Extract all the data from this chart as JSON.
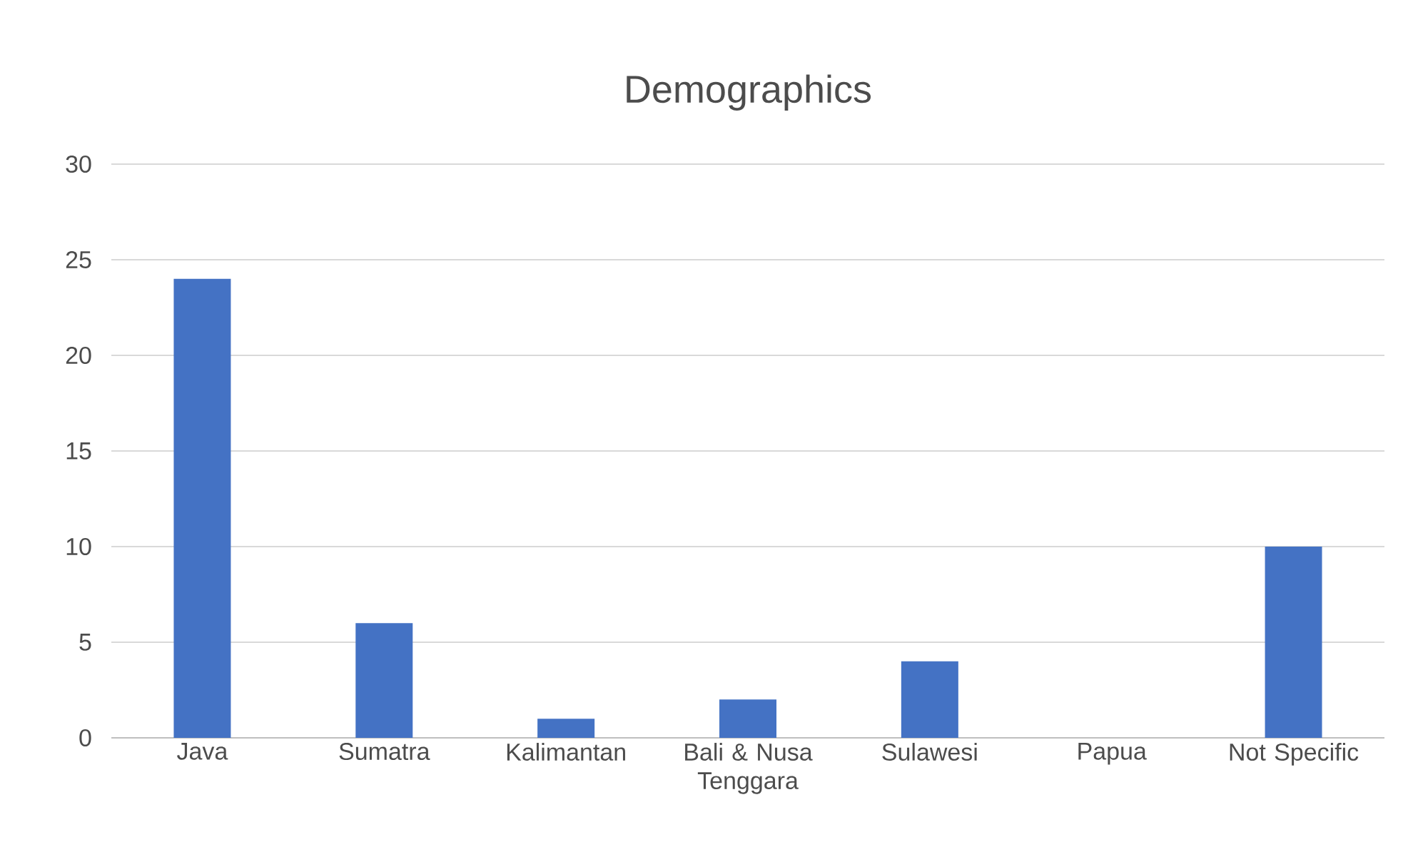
{
  "chart_data": {
    "type": "bar",
    "title": "Demographics",
    "categories": [
      "Java",
      "Sumatra",
      "Kalimantan",
      "Bali & Nusa Tenggara",
      "Sulawesi",
      "Papua",
      "Not Specific"
    ],
    "values": [
      24,
      6,
      1,
      2,
      4,
      0,
      10
    ],
    "color": "#4472c4",
    "ylim": [
      0,
      30
    ],
    "yticks": [
      0,
      5,
      10,
      15,
      20,
      25,
      30
    ],
    "grid": "y"
  }
}
